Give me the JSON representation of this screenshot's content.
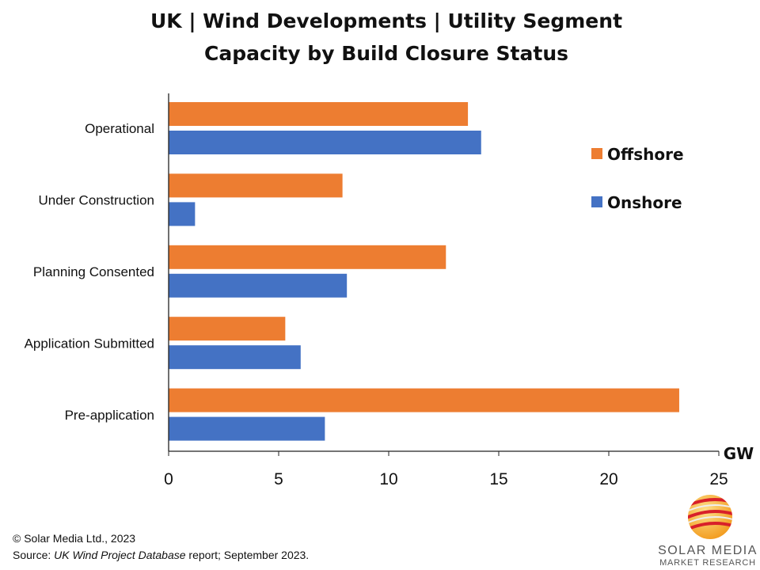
{
  "chart_data": {
    "type": "bar",
    "orientation": "horizontal",
    "title": "UK | Wind Developments | Utility Segment",
    "subtitle": "Capacity by Build Closure Status",
    "categories": [
      "Operational",
      "Under Construction",
      "Planning Consented",
      "Application Submitted",
      "Pre-application"
    ],
    "series": [
      {
        "name": "Offshore",
        "color": "#ED7D31",
        "values": [
          13.6,
          7.9,
          12.6,
          5.3,
          23.2
        ]
      },
      {
        "name": "Onshore",
        "color": "#4472C4",
        "values": [
          14.2,
          1.2,
          8.1,
          6.0,
          7.1
        ]
      }
    ],
    "xlabel": "GW",
    "xlim": [
      0,
      25
    ],
    "xticks": [
      "0",
      "5",
      "10",
      "15",
      "20",
      "25"
    ],
    "grid": false,
    "legend_position": "right"
  },
  "footer": {
    "copyright": "© Solar Media Ltd., 2023",
    "source_prefix": "Source: ",
    "source_italic": "UK Wind Project Database",
    "source_suffix": " report; September 2023."
  },
  "logo": {
    "line1": "SOLAR MEDIA",
    "line2": "MARKET RESEARCH"
  }
}
